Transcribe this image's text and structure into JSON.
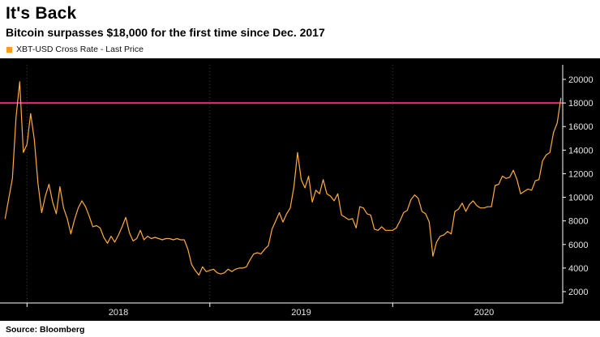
{
  "header": {
    "title": "It's Back",
    "subtitle": "Bitcoin surpasses $18,000 for the first time since Dec. 2017",
    "legend": {
      "label": "XBT-USD Cross Rate - Last Price",
      "swatch_color": "#f89c1c"
    }
  },
  "footer": {
    "source": "Source: Bloomberg"
  },
  "colors": {
    "chart_background": "#000000",
    "axis": "#ffffff",
    "axis_text": "#e6e6e6",
    "gridline": "#3c3c3c",
    "price_line": "#ffab3d",
    "threshold_line": "#e8297f"
  },
  "chart_data": {
    "type": "line",
    "title": "It's Back",
    "subtitle": "Bitcoin surpasses $18,000 for the first time since Dec. 2017",
    "xlabel": "",
    "ylabel": "",
    "xlim": [
      2017.87,
      2020.93
    ],
    "ylim": [
      2000,
      20000
    ],
    "grid": "vertical-dotted",
    "legend_position": "top-left-above-chart",
    "y_ticks": [
      20000,
      18000,
      16000,
      14000,
      12000,
      10000,
      8000,
      6000,
      4000,
      2000
    ],
    "grid_x": [
      2018,
      2019,
      2020
    ],
    "x_tick_labels": [
      {
        "label": "2018",
        "x": 2018.5
      },
      {
        "label": "2019",
        "x": 2019.5
      },
      {
        "label": "2020",
        "x": 2020.5
      }
    ],
    "highlight_line": {
      "value": 18000,
      "color": "#e8297f",
      "meaning": "18,000 threshold"
    },
    "series": [
      {
        "name": "XBT-USD Cross Rate - Last Price",
        "color": "#ffab3d",
        "points": [
          [
            2017.88,
            8200
          ],
          [
            2017.9,
            9900
          ],
          [
            2017.92,
            11600
          ],
          [
            2017.94,
            16800
          ],
          [
            2017.96,
            19800
          ],
          [
            2017.98,
            13800
          ],
          [
            2018.0,
            14500
          ],
          [
            2018.02,
            17100
          ],
          [
            2018.04,
            14900
          ],
          [
            2018.06,
            11200
          ],
          [
            2018.08,
            8700
          ],
          [
            2018.1,
            10100
          ],
          [
            2018.12,
            11100
          ],
          [
            2018.14,
            9600
          ],
          [
            2018.16,
            8600
          ],
          [
            2018.18,
            10900
          ],
          [
            2018.2,
            9100
          ],
          [
            2018.22,
            8200
          ],
          [
            2018.24,
            6900
          ],
          [
            2018.26,
            8100
          ],
          [
            2018.28,
            9100
          ],
          [
            2018.3,
            9700
          ],
          [
            2018.32,
            9200
          ],
          [
            2018.34,
            8400
          ],
          [
            2018.36,
            7500
          ],
          [
            2018.38,
            7600
          ],
          [
            2018.4,
            7400
          ],
          [
            2018.42,
            6600
          ],
          [
            2018.44,
            6100
          ],
          [
            2018.46,
            6700
          ],
          [
            2018.48,
            6200
          ],
          [
            2018.5,
            6800
          ],
          [
            2018.52,
            7500
          ],
          [
            2018.54,
            8300
          ],
          [
            2018.56,
            7000
          ],
          [
            2018.58,
            6300
          ],
          [
            2018.6,
            6500
          ],
          [
            2018.62,
            7200
          ],
          [
            2018.64,
            6400
          ],
          [
            2018.66,
            6700
          ],
          [
            2018.68,
            6500
          ],
          [
            2018.7,
            6600
          ],
          [
            2018.72,
            6500
          ],
          [
            2018.74,
            6400
          ],
          [
            2018.76,
            6500
          ],
          [
            2018.78,
            6500
          ],
          [
            2018.8,
            6400
          ],
          [
            2018.82,
            6500
          ],
          [
            2018.84,
            6400
          ],
          [
            2018.86,
            6400
          ],
          [
            2018.88,
            5600
          ],
          [
            2018.9,
            4300
          ],
          [
            2018.92,
            3800
          ],
          [
            2018.94,
            3400
          ],
          [
            2018.96,
            4100
          ],
          [
            2018.98,
            3700
          ],
          [
            2019.0,
            3800
          ],
          [
            2019.02,
            3900
          ],
          [
            2019.04,
            3600
          ],
          [
            2019.06,
            3500
          ],
          [
            2019.08,
            3600
          ],
          [
            2019.1,
            3900
          ],
          [
            2019.12,
            3700
          ],
          [
            2019.14,
            3900
          ],
          [
            2019.16,
            4000
          ],
          [
            2019.18,
            4000
          ],
          [
            2019.2,
            4100
          ],
          [
            2019.22,
            4700
          ],
          [
            2019.24,
            5200
          ],
          [
            2019.26,
            5300
          ],
          [
            2019.28,
            5200
          ],
          [
            2019.3,
            5600
          ],
          [
            2019.32,
            5900
          ],
          [
            2019.34,
            7300
          ],
          [
            2019.36,
            8000
          ],
          [
            2019.38,
            8700
          ],
          [
            2019.4,
            7900
          ],
          [
            2019.42,
            8600
          ],
          [
            2019.44,
            9100
          ],
          [
            2019.46,
            10900
          ],
          [
            2019.48,
            13800
          ],
          [
            2019.5,
            11500
          ],
          [
            2019.52,
            10800
          ],
          [
            2019.54,
            11800
          ],
          [
            2019.56,
            9600
          ],
          [
            2019.58,
            10600
          ],
          [
            2019.6,
            10300
          ],
          [
            2019.62,
            11500
          ],
          [
            2019.64,
            10300
          ],
          [
            2019.66,
            10100
          ],
          [
            2019.68,
            9700
          ],
          [
            2019.7,
            10300
          ],
          [
            2019.72,
            8500
          ],
          [
            2019.74,
            8300
          ],
          [
            2019.76,
            8100
          ],
          [
            2019.78,
            8200
          ],
          [
            2019.8,
            7400
          ],
          [
            2019.82,
            9200
          ],
          [
            2019.84,
            9100
          ],
          [
            2019.86,
            8600
          ],
          [
            2019.88,
            8500
          ],
          [
            2019.9,
            7300
          ],
          [
            2019.92,
            7200
          ],
          [
            2019.94,
            7500
          ],
          [
            2019.96,
            7200
          ],
          [
            2019.98,
            7200
          ],
          [
            2020.0,
            7200
          ],
          [
            2020.02,
            7400
          ],
          [
            2020.04,
            8000
          ],
          [
            2020.06,
            8700
          ],
          [
            2020.08,
            8900
          ],
          [
            2020.1,
            9800
          ],
          [
            2020.12,
            10200
          ],
          [
            2020.14,
            9900
          ],
          [
            2020.16,
            8800
          ],
          [
            2020.18,
            8600
          ],
          [
            2020.2,
            7900
          ],
          [
            2020.22,
            5000
          ],
          [
            2020.24,
            6200
          ],
          [
            2020.26,
            6700
          ],
          [
            2020.28,
            6800
          ],
          [
            2020.3,
            7100
          ],
          [
            2020.32,
            6900
          ],
          [
            2020.34,
            8800
          ],
          [
            2020.36,
            9000
          ],
          [
            2020.38,
            9500
          ],
          [
            2020.4,
            8800
          ],
          [
            2020.42,
            9400
          ],
          [
            2020.44,
            9700
          ],
          [
            2020.46,
            9300
          ],
          [
            2020.48,
            9100
          ],
          [
            2020.5,
            9100
          ],
          [
            2020.52,
            9200
          ],
          [
            2020.54,
            9200
          ],
          [
            2020.56,
            11000
          ],
          [
            2020.58,
            11100
          ],
          [
            2020.6,
            11800
          ],
          [
            2020.62,
            11600
          ],
          [
            2020.64,
            11700
          ],
          [
            2020.66,
            12300
          ],
          [
            2020.68,
            11500
          ],
          [
            2020.7,
            10300
          ],
          [
            2020.72,
            10500
          ],
          [
            2020.74,
            10700
          ],
          [
            2020.76,
            10600
          ],
          [
            2020.78,
            11400
          ],
          [
            2020.8,
            11500
          ],
          [
            2020.82,
            13100
          ],
          [
            2020.84,
            13600
          ],
          [
            2020.86,
            13800
          ],
          [
            2020.88,
            15500
          ],
          [
            2020.9,
            16300
          ],
          [
            2020.92,
            18400
          ]
        ]
      }
    ]
  }
}
